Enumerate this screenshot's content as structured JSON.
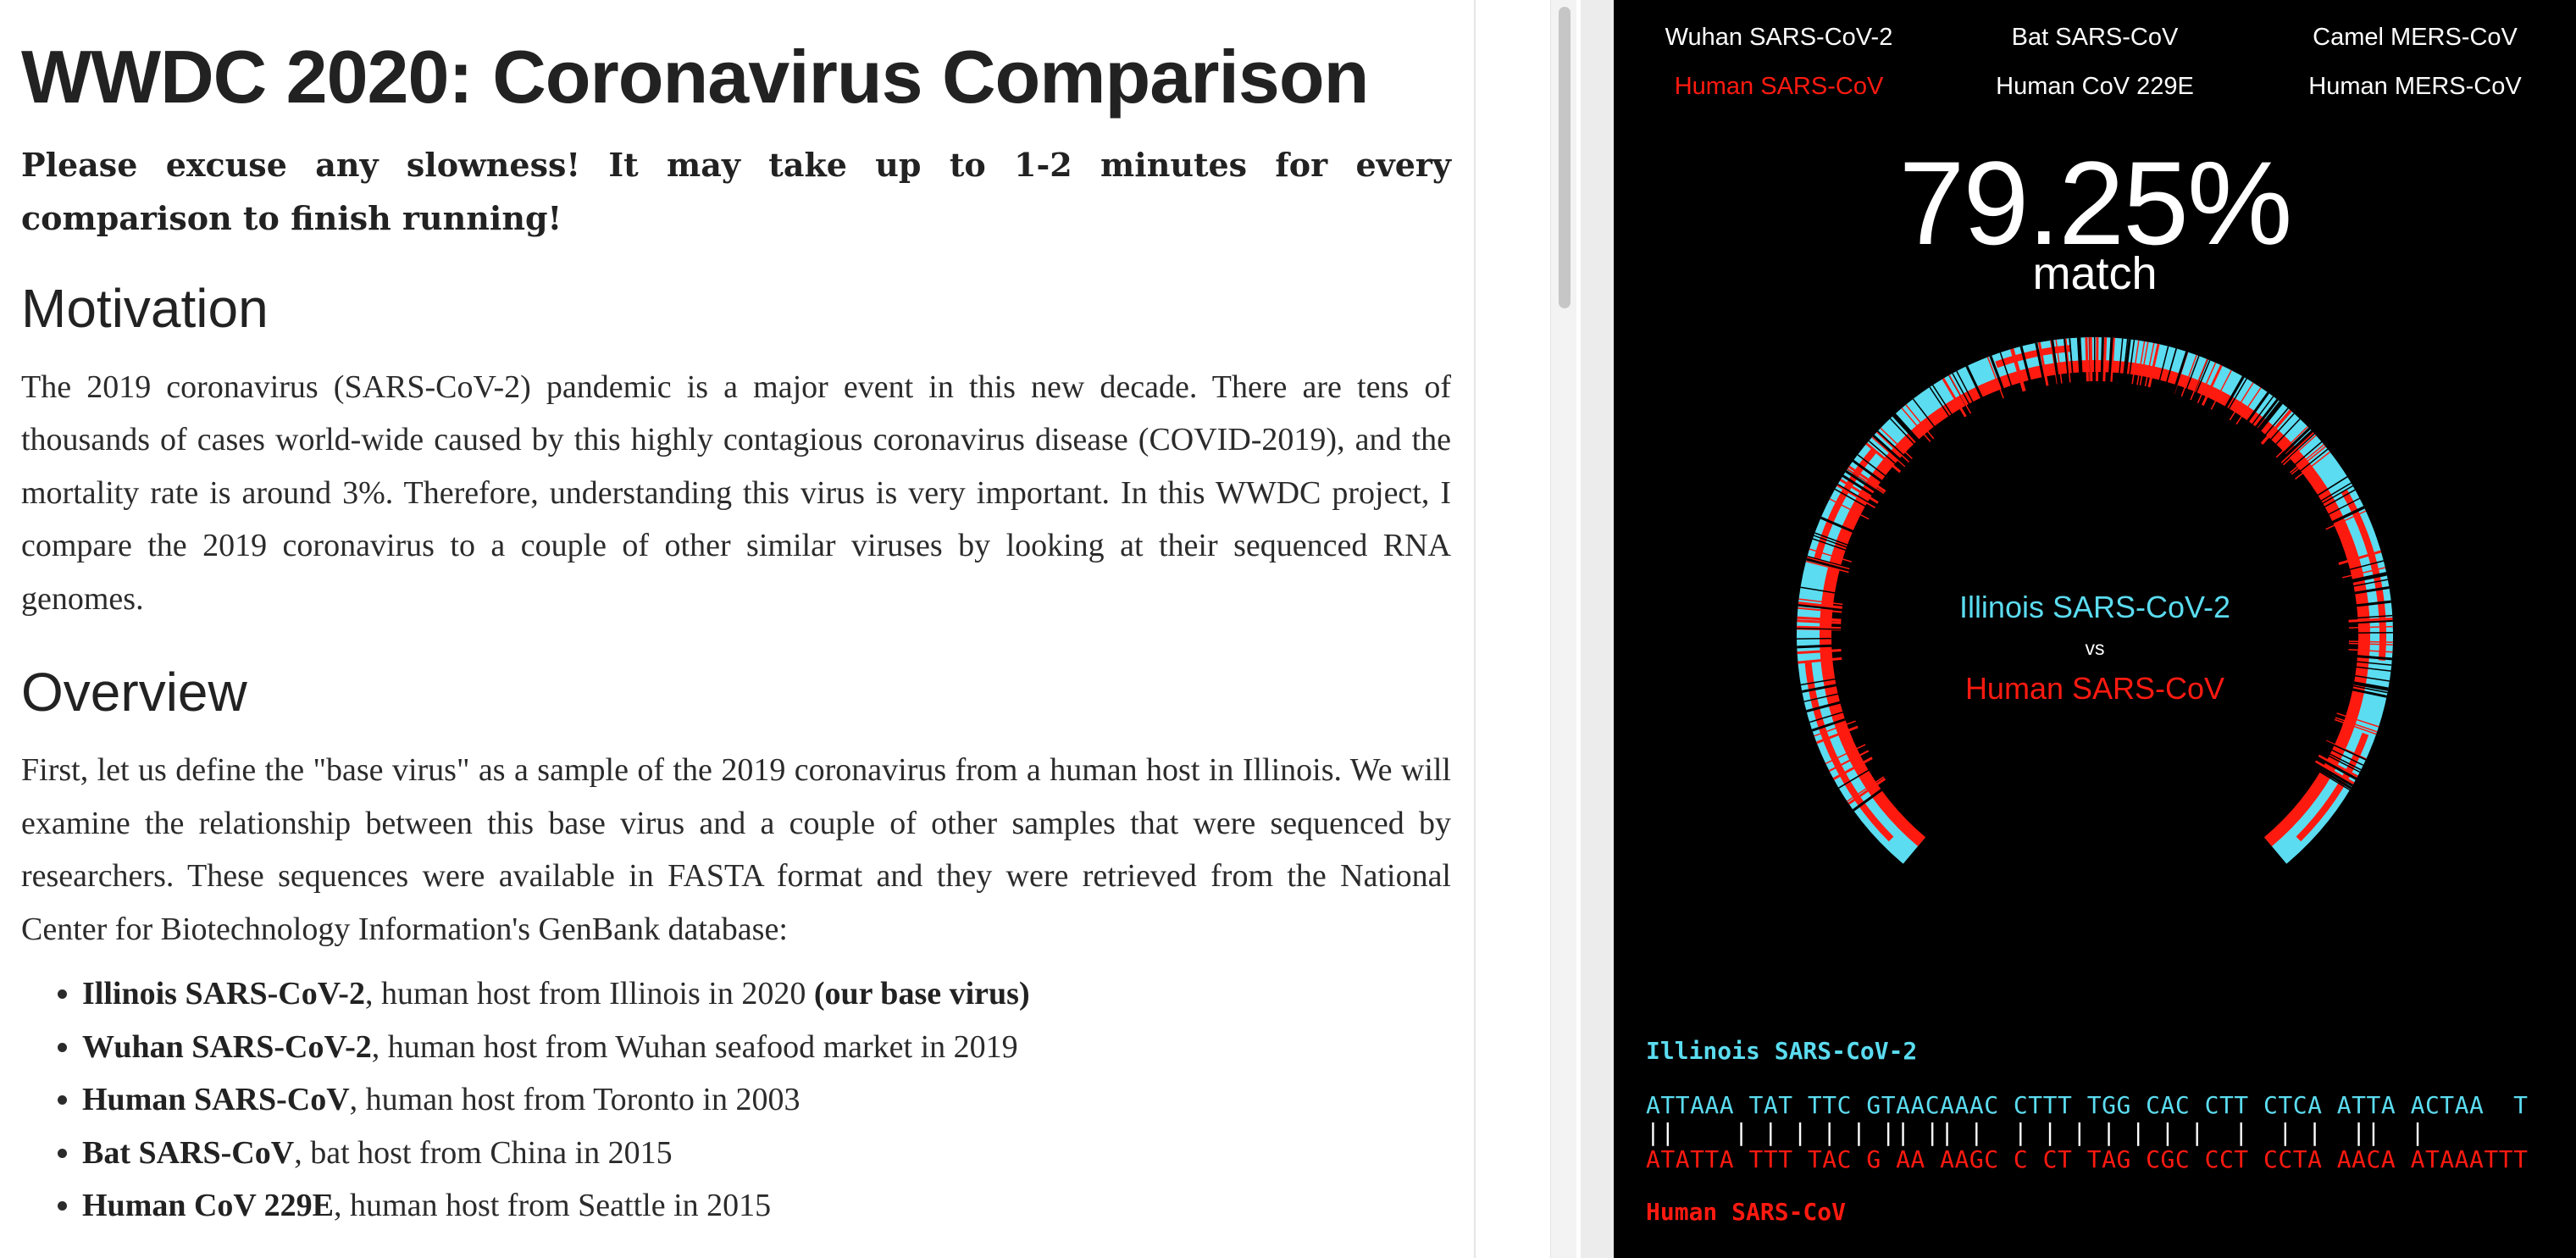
{
  "article": {
    "title": "WWDC 2020: Coronavirus Comparison",
    "note": "Please excuse any slowness! It may take up to 1-2 minutes for every comparison to finish running!",
    "sections": [
      {
        "heading": "Motivation",
        "body": "The 2019 coronavirus (SARS-CoV-2) pandemic is a major event in this new decade. There are tens of thousands of cases world-wide caused by this highly contagious coronavirus disease (COVID-2019), and the mortality rate is around 3%. Therefore, understanding this virus is very important. In this WWDC project, I compare the 2019 coronavirus to a couple of other similar viruses by looking at their sequenced RNA genomes."
      },
      {
        "heading": "Overview",
        "body": "First, let us define the \"base virus\" as a sample of the 2019 coronavirus from a human host in Illinois. We will examine the relationship between this base virus and a couple of other samples that were sequenced by researchers. These sequences were available in FASTA format and they were retrieved from the National Center for Biotechnology Information's GenBank database:"
      }
    ],
    "virus_list": [
      {
        "name": "Illinois SARS-CoV-2",
        "desc": ", human host from Illinois in 2020 ",
        "extra": "(our base virus)"
      },
      {
        "name": "Wuhan SARS-CoV-2",
        "desc": ", human host from Wuhan seafood market in 2019",
        "extra": ""
      },
      {
        "name": "Human SARS-CoV",
        "desc": ", human host from Toronto in 2003",
        "extra": ""
      },
      {
        "name": "Bat SARS-CoV",
        "desc": ", bat host from China in 2015",
        "extra": ""
      },
      {
        "name": "Human CoV 229E",
        "desc": ", human host from Seattle in 2015",
        "extra": ""
      }
    ]
  },
  "live_view": {
    "virus_options": [
      "Wuhan SARS-CoV-2",
      "Bat SARS-CoV",
      "Camel MERS-CoV",
      "Human SARS-CoV",
      "Human CoV 229E",
      "Human MERS-CoV"
    ],
    "selected": "Human SARS-CoV",
    "match_percent": "79.25%",
    "match_label": "match",
    "base_virus": "Illinois SARS-CoV-2",
    "vs_label": "vs",
    "compare_virus": "Human SARS-CoV",
    "alignment": {
      "top_label": "Illinois SARS-CoV-2",
      "top_seq": "ATTAAA TAT TTC GTAACAAAC CTTT TGG CAC CTT CTCA ATTA ACTAA  T",
      "match_line": "||    | | | | | || || |  | | | | | | |  |  | |  ||  |",
      "bottom_seq": "ATATTA TTT TAC G AA AAGC C CT TAG CGC CCT CCTA AACA ATAAATTT",
      "bottom_label": "Human SARS-CoV"
    }
  },
  "colors": {
    "base_cyan": "#5bdcf0",
    "compare_red": "#ff1a10",
    "panel_bg": "#000000",
    "text_dark": "#222222"
  },
  "chart_data": {
    "type": "ring",
    "match_fraction": 0.7925,
    "series": [
      {
        "name": "Illinois SARS-CoV-2",
        "color": "#5bdcf0"
      },
      {
        "name": "Human SARS-CoV",
        "color": "#ff1a10"
      }
    ]
  }
}
